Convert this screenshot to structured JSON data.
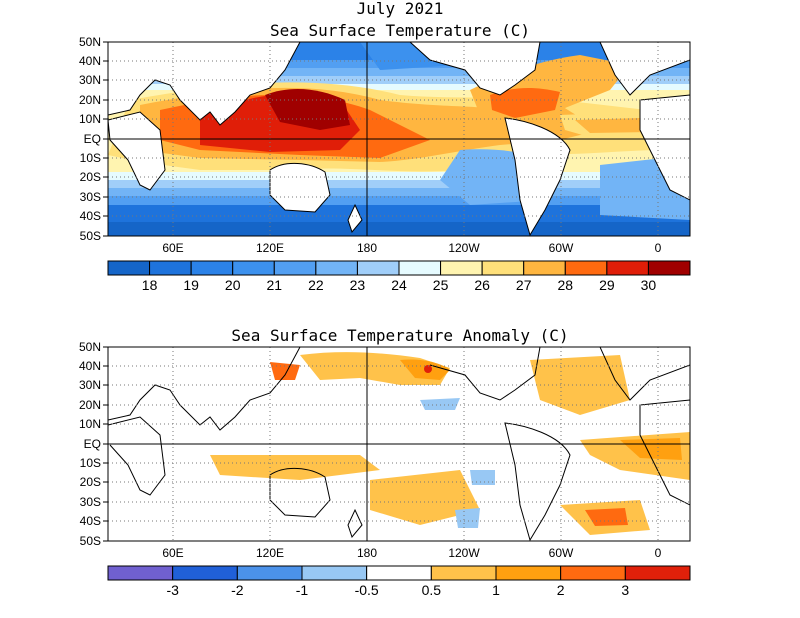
{
  "top_title_1": "July 2021",
  "top_title_2": "Sea Surface Temperature (C)",
  "bottom_title": "Sea Surface Temperature Anomaly (C)",
  "lat_labels": [
    "50N",
    "40N",
    "30N",
    "20N",
    "10N",
    "EQ",
    "10S",
    "20S",
    "30S",
    "40S",
    "50S"
  ],
  "lon_labels": [
    "60E",
    "120E",
    "180",
    "120W",
    "60W",
    "0"
  ],
  "sst_colorbar": {
    "labels": [
      "18",
      "19",
      "20",
      "21",
      "22",
      "23",
      "24",
      "25",
      "26",
      "27",
      "28",
      "29",
      "30"
    ],
    "colors": [
      "#1565c8",
      "#1e73dc",
      "#2b82e8",
      "#3c91ee",
      "#529ff2",
      "#72b4f6",
      "#a0cef9",
      "#e6fbff",
      "#fff4b0",
      "#ffe07a",
      "#ffb640",
      "#ff6a10",
      "#e01e08",
      "#a00000"
    ]
  },
  "anom_colorbar": {
    "labels": [
      "-3",
      "-2",
      "-1",
      "-0.5",
      "0.5",
      "1",
      "2",
      "3"
    ],
    "colors": [
      "#7060d0",
      "#2060d8",
      "#4b92ea",
      "#98c8f4",
      "#ffffff",
      "#ffc24a",
      "#ffa010",
      "#ff6a10",
      "#e0200a"
    ]
  },
  "colors": {
    "land_outline": "#000000",
    "grid": "#777777"
  }
}
